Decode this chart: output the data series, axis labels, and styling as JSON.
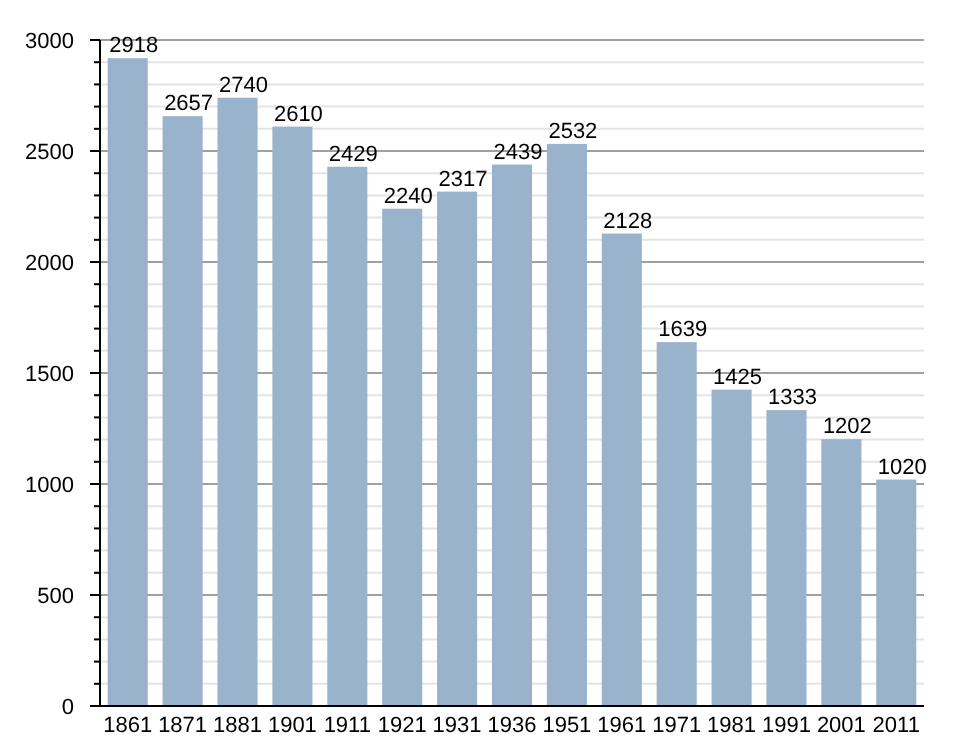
{
  "chart_data": {
    "type": "bar",
    "categories": [
      "1861",
      "1871",
      "1881",
      "1901",
      "1911",
      "1921",
      "1931",
      "1936",
      "1951",
      "1961",
      "1971",
      "1981",
      "1991",
      "2001",
      "2011"
    ],
    "values": [
      2918,
      2657,
      2740,
      2610,
      2429,
      2240,
      2317,
      2439,
      2532,
      2128,
      1639,
      1425,
      1333,
      1202,
      1020
    ],
    "color": "#99b3cc",
    "ylim": [
      0,
      3000
    ],
    "yticks": [
      0,
      {
        "value": 100,
        "label": null
      },
      {
        "value": 200,
        "label": null
      },
      {
        "value": 300,
        "label": null
      },
      {
        "value": 400,
        "label": null
      },
      500,
      {
        "value": 600,
        "label": null
      },
      {
        "value": 700,
        "label": null
      },
      {
        "value": 800,
        "label": null
      },
      {
        "value": 900,
        "label": null
      },
      1000,
      {
        "value": 1100,
        "label": null
      },
      {
        "value": 1200,
        "label": null
      },
      {
        "value": 1300,
        "label": null
      },
      {
        "value": 1400,
        "label": null
      },
      1500,
      {
        "value": 1600,
        "label": null
      },
      {
        "value": 1700,
        "label": null
      },
      {
        "value": 1800,
        "label": null
      },
      {
        "value": 1900,
        "label": null
      },
      2000,
      {
        "value": 2100,
        "label": null
      },
      {
        "value": 2200,
        "label": null
      },
      {
        "value": 2300,
        "label": null
      },
      {
        "value": 2400,
        "label": null
      },
      2500,
      {
        "value": 2600,
        "label": null
      },
      {
        "value": 2700,
        "label": null
      },
      {
        "value": 2800,
        "label": null
      },
      {
        "value": 2900,
        "label": null
      },
      3000
    ],
    "grid": "y",
    "data_labels": true
  }
}
